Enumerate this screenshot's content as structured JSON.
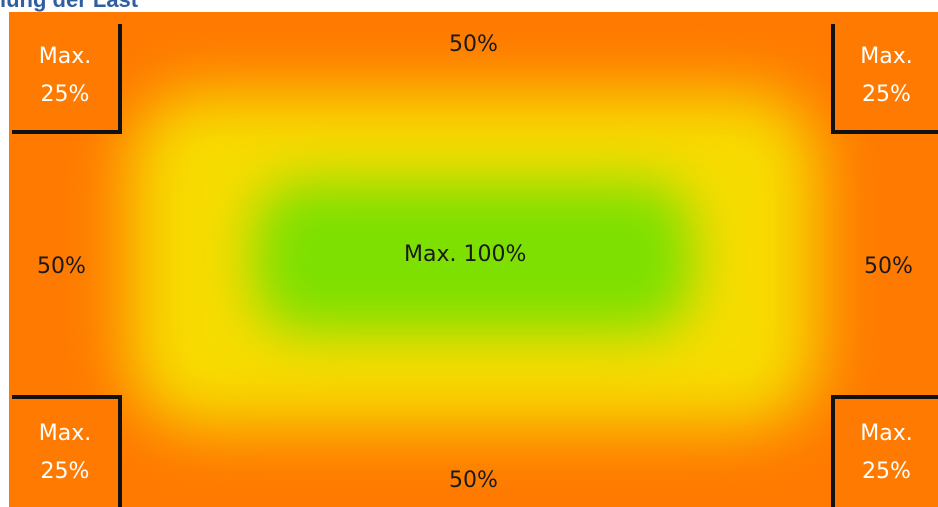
{
  "heading": "lung der Last",
  "zones": {
    "center_label": "Max. 100%",
    "edge_top_label": "50%",
    "edge_bottom_label": "50%",
    "edge_left_label": "50%",
    "edge_right_label": "50%"
  },
  "corners": {
    "top_left": {
      "line1": "Max.",
      "line2": "25%"
    },
    "top_right": {
      "line1": "Max.",
      "line2": "25%"
    },
    "bottom_left": {
      "line1": "Max.",
      "line2": "25%"
    },
    "bottom_right": {
      "line1": "Max.",
      "line2": "25%"
    }
  },
  "colors": {
    "outer": "#ff7a00",
    "middle": "#f7dc00",
    "center": "#7de000",
    "border": "#111111",
    "heading": "#2f5fa0"
  }
}
